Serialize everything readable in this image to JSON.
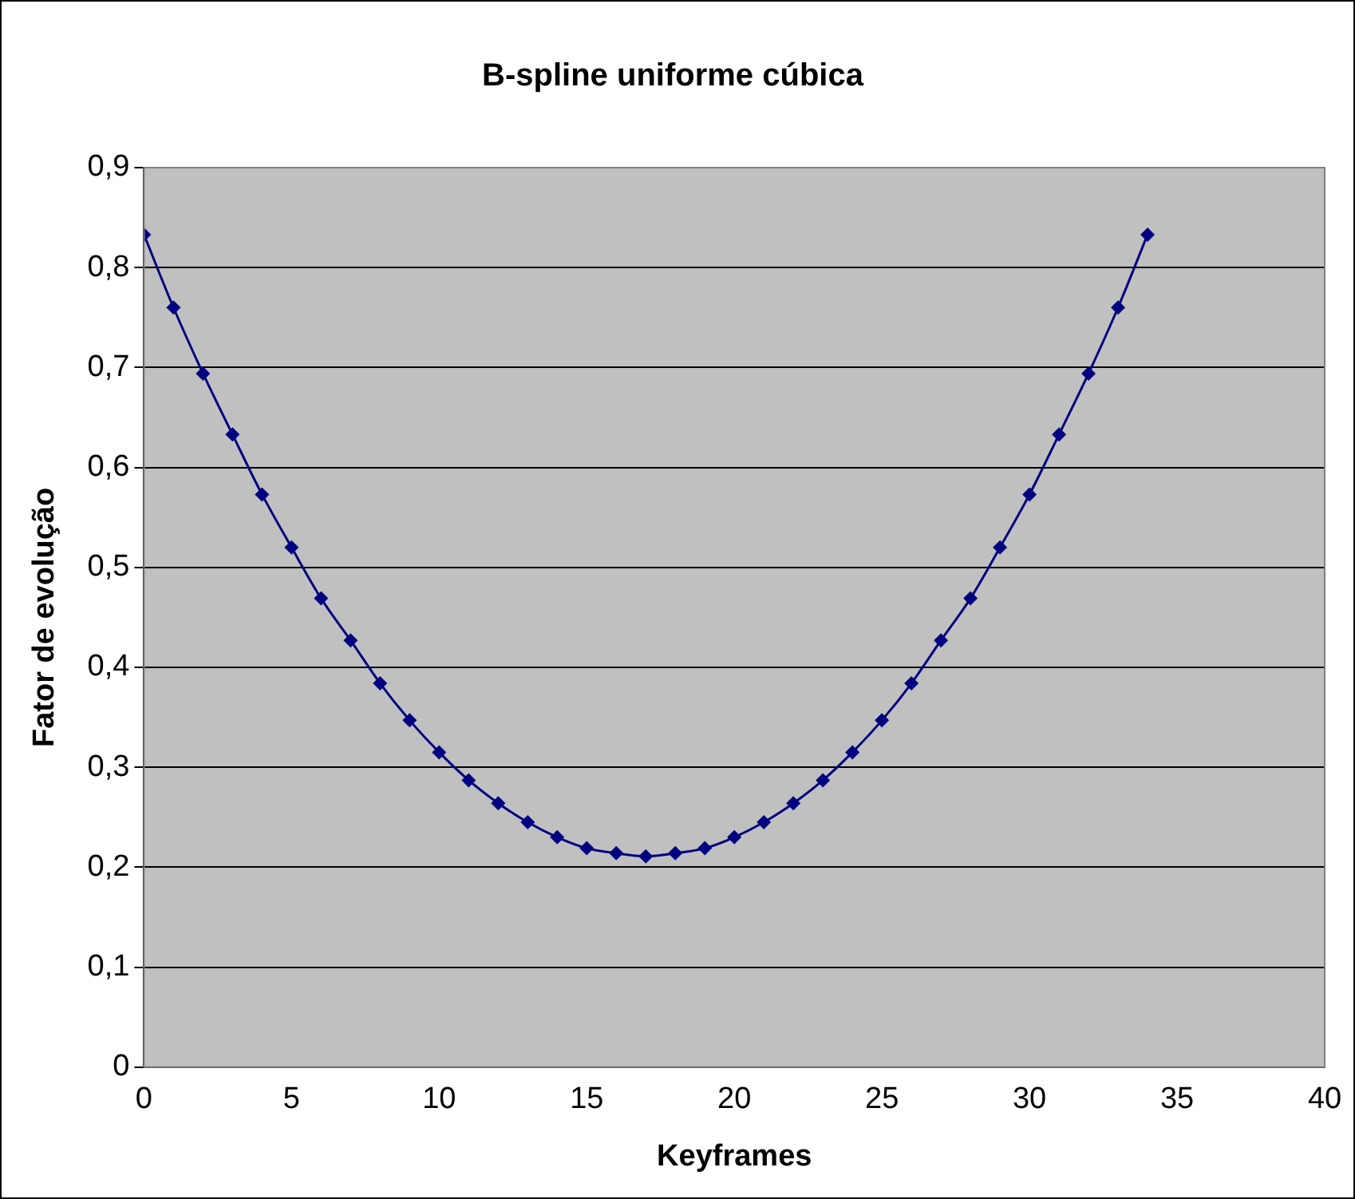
{
  "chart_data": {
    "type": "line",
    "title": "B-spline uniforme cúbica",
    "xlabel": "Keyframes",
    "ylabel": "Fator de evolução",
    "x": [
      0,
      1,
      2,
      3,
      4,
      5,
      6,
      7,
      8,
      9,
      10,
      11,
      12,
      13,
      14,
      15,
      16,
      17,
      18,
      19,
      20,
      21,
      22,
      23,
      24,
      25,
      26,
      27,
      28,
      29,
      30,
      31,
      32,
      33,
      34
    ],
    "series": [
      {
        "color": "#000080",
        "values": [
          0.833,
          0.76,
          0.694,
          0.633,
          0.573,
          0.52,
          0.469,
          0.427,
          0.384,
          0.347,
          0.315,
          0.287,
          0.264,
          0.245,
          0.23,
          0.219,
          0.214,
          0.211,
          0.214,
          0.219,
          0.23,
          0.245,
          0.264,
          0.287,
          0.315,
          0.347,
          0.384,
          0.427,
          0.469,
          0.52,
          0.573,
          0.633,
          0.694,
          0.76,
          0.833
        ]
      }
    ],
    "xlim": [
      0,
      40
    ],
    "xticks": [
      0,
      5,
      10,
      15,
      20,
      25,
      30,
      35,
      40
    ],
    "ylim": [
      0,
      0.9
    ],
    "yticks": [
      {
        "value": 0,
        "label": "0"
      },
      {
        "value": 0.1,
        "label": "0,1"
      },
      {
        "value": 0.2,
        "label": "0,2"
      },
      {
        "value": 0.3,
        "label": "0,3"
      },
      {
        "value": 0.4,
        "label": "0,4"
      },
      {
        "value": 0.5,
        "label": "0,5"
      },
      {
        "value": 0.6,
        "label": "0,6"
      },
      {
        "value": 0.7,
        "label": "0,7"
      },
      {
        "value": 0.8,
        "label": "0,8"
      },
      {
        "value": 0.9,
        "label": "0,9"
      }
    ],
    "grid": "y",
    "legend": false,
    "marker": "diamond",
    "line_style": "solid"
  }
}
